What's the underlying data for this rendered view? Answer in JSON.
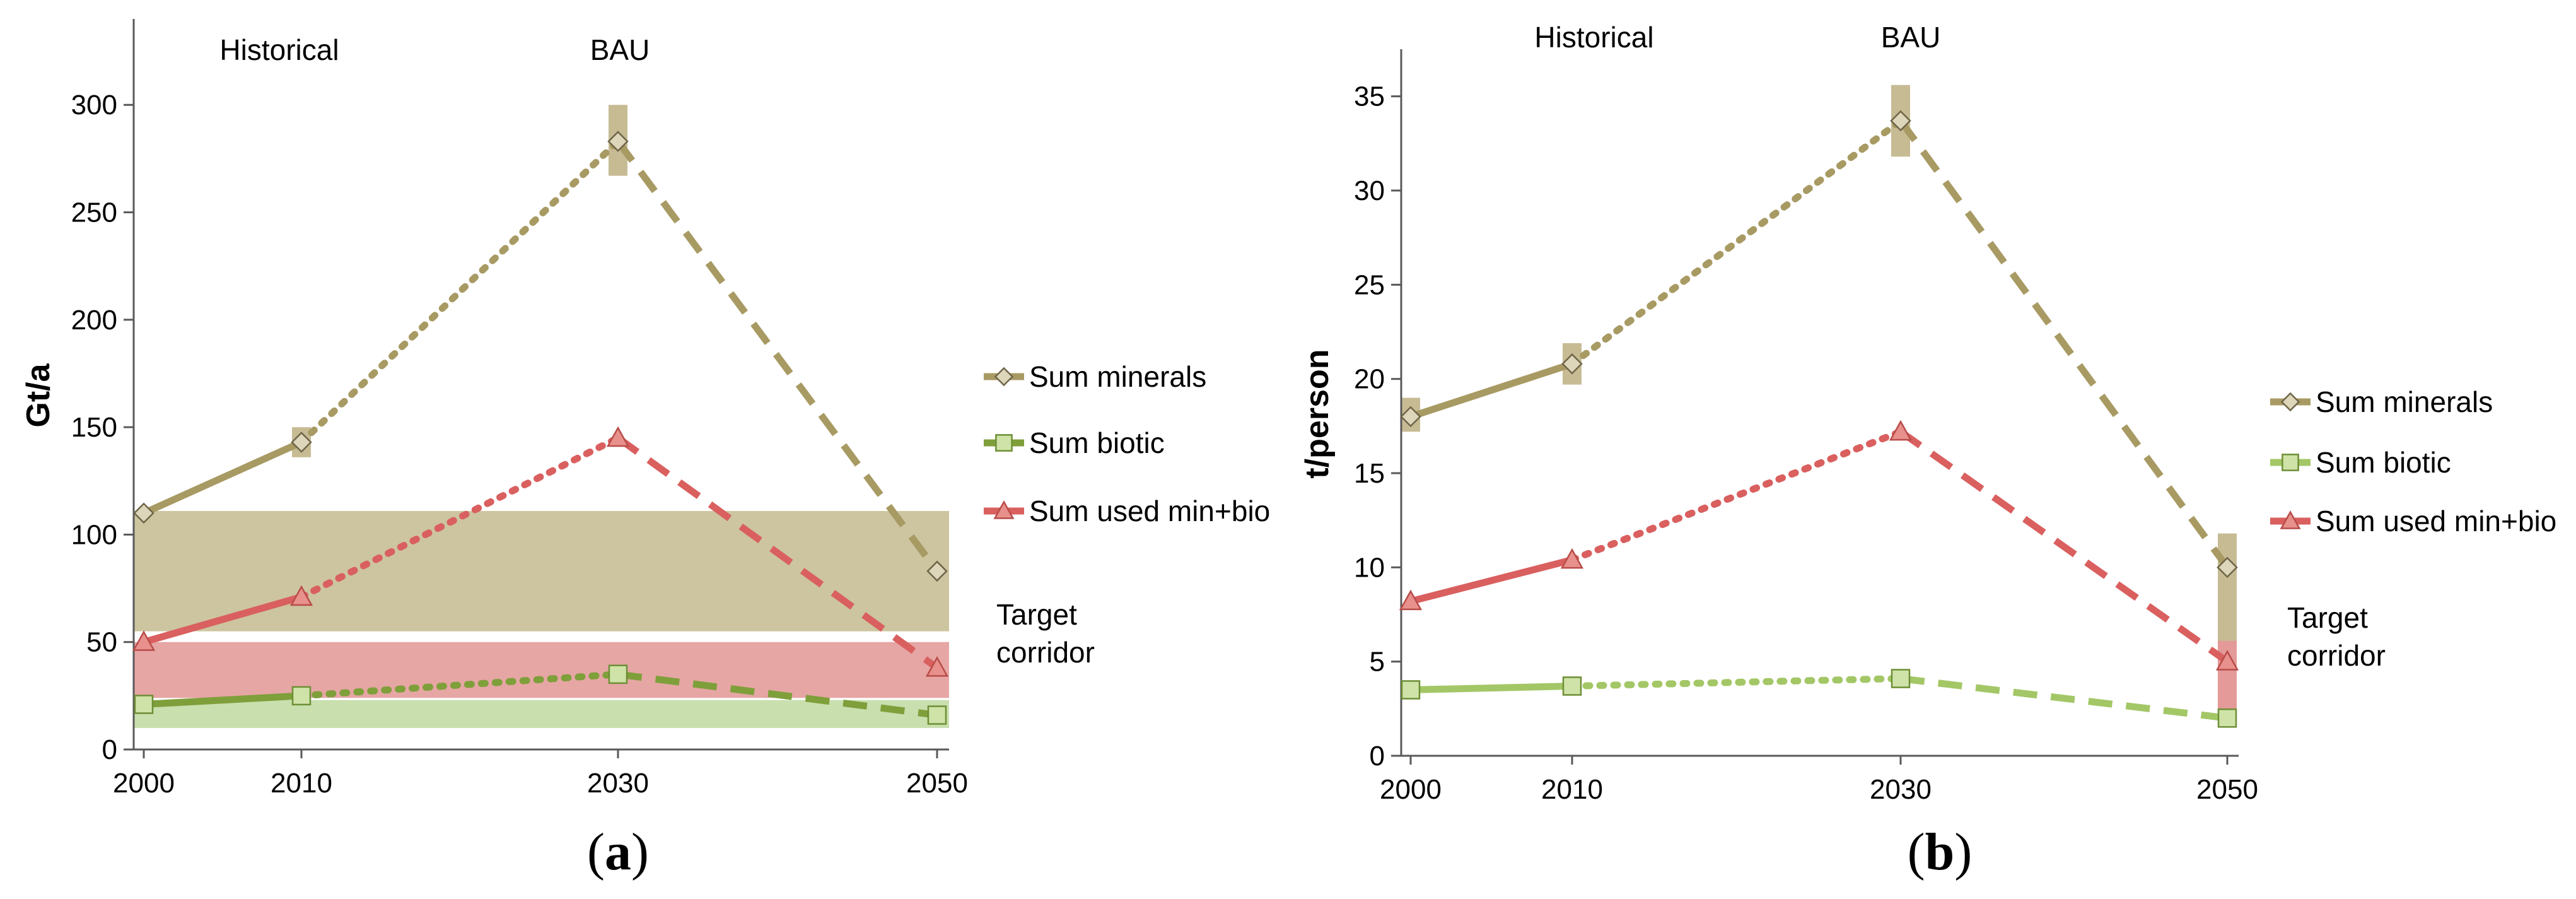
{
  "colors": {
    "minerals": "#a89a63",
    "biotic": "#7f9f3b",
    "biotic_b": "#a3c766",
    "used": "#d9605f",
    "minerals_band": "#cdc4a0",
    "used_band": "#e6a6a4",
    "biotic_band": "#c9dfae",
    "bar_minerals": "#c7bb94",
    "bar_used": "#e39a98"
  },
  "chart_data": [
    {
      "type": "line",
      "panel_label_open": "(",
      "panel_letter": "a",
      "panel_label_close": ")",
      "ylabel": "Gt/a",
      "ylim": [
        0,
        340
      ],
      "yticks": [
        "0",
        "50",
        "100",
        "150",
        "200",
        "250",
        "300"
      ],
      "x_categories": [
        "2000",
        "2010",
        "2030",
        "2050"
      ],
      "period_labels": {
        "historical": "Historical",
        "bau": "BAU"
      },
      "legend": [
        "Sum minerals",
        "Sum biotic",
        "Sum used min+bio"
      ],
      "target_corridor": [
        "Target",
        "corridor"
      ],
      "series": [
        {
          "name": "Sum minerals",
          "key": "minerals",
          "marker": "diamond",
          "values": [
            110,
            143,
            283,
            83
          ]
        },
        {
          "name": "Sum biotic",
          "key": "biotic",
          "marker": "square",
          "values": [
            21,
            25,
            35,
            16
          ]
        },
        {
          "name": "Sum used min+bio",
          "key": "used",
          "marker": "triangle",
          "values": [
            50,
            71,
            145,
            38
          ]
        }
      ],
      "corridor_bands": [
        {
          "key": "minerals_band",
          "range": [
            55,
            111
          ]
        },
        {
          "key": "used_band",
          "range": [
            24,
            50
          ]
        },
        {
          "key": "biotic_band",
          "range": [
            10,
            23
          ]
        }
      ],
      "error_bars": [
        {
          "key": "bar_minerals",
          "x": "2010",
          "range": [
            136,
            150
          ]
        },
        {
          "key": "bar_minerals",
          "x": "2030",
          "range": [
            267,
            300
          ]
        }
      ]
    },
    {
      "type": "line",
      "panel_label_open": "(",
      "panel_letter": "b",
      "panel_label_close": ")",
      "ylabel": "t/person",
      "ylim": [
        0,
        37.5
      ],
      "yticks": [
        "0",
        "5",
        "10",
        "15",
        "20",
        "25",
        "30",
        "35"
      ],
      "x_categories": [
        "2000",
        "2010",
        "2030",
        "2050"
      ],
      "period_labels": {
        "historical": "Historical",
        "bau": "BAU"
      },
      "legend": [
        "Sum minerals",
        "Sum biotic",
        "Sum used min+bio"
      ],
      "target_corridor": [
        "Target",
        "corridor"
      ],
      "series": [
        {
          "name": "Sum minerals",
          "key": "minerals",
          "marker": "diamond",
          "values": [
            18.0,
            20.8,
            33.7,
            10.0
          ]
        },
        {
          "name": "Sum biotic",
          "key": "biotic_b",
          "marker": "square",
          "values": [
            3.5,
            3.7,
            4.1,
            2.0
          ]
        },
        {
          "name": "Sum used min+bio",
          "key": "used",
          "marker": "triangle",
          "values": [
            8.2,
            10.4,
            17.2,
            5.0
          ]
        }
      ],
      "corridor_bands": [],
      "error_bars": [
        {
          "key": "bar_minerals",
          "x": "2000",
          "range": [
            17.2,
            19.0
          ]
        },
        {
          "key": "bar_minerals",
          "x": "2010",
          "range": [
            19.7,
            21.9
          ]
        },
        {
          "key": "bar_minerals",
          "x": "2030",
          "range": [
            31.8,
            35.6
          ]
        },
        {
          "key": "bar_minerals",
          "x": "2050",
          "range": [
            6.0,
            11.8
          ]
        },
        {
          "key": "bar_used",
          "x": "2050",
          "range": [
            1.6,
            6.1
          ]
        }
      ]
    }
  ]
}
